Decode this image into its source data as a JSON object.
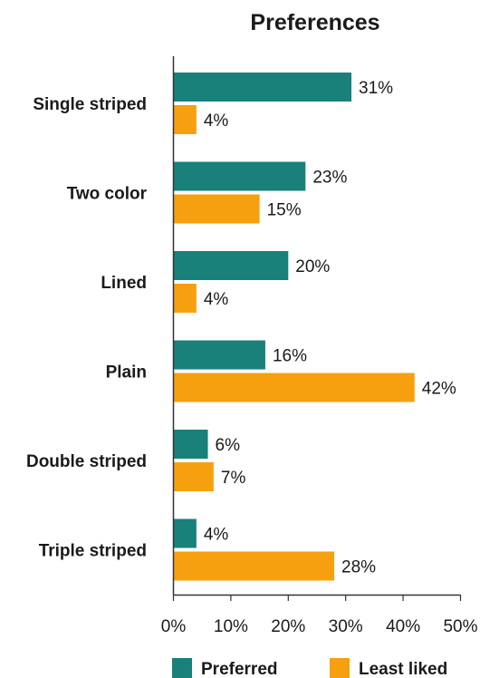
{
  "chart_data": {
    "type": "bar",
    "orientation": "horizontal",
    "title": "Preferences",
    "xlabel": "",
    "ylabel": "",
    "categories": [
      "Single striped",
      "Two color",
      "Lined",
      "Plain",
      "Double striped",
      "Triple striped"
    ],
    "series": [
      {
        "name": "Preferred",
        "color": "#19807a",
        "values": [
          31,
          23,
          20,
          16,
          6,
          4
        ]
      },
      {
        "name": "Least liked",
        "color": "#f7a00f",
        "values": [
          4,
          15,
          4,
          42,
          7,
          28
        ]
      }
    ],
    "xlim": [
      0,
      50
    ],
    "xticks": [
      0,
      10,
      20,
      30,
      40,
      50
    ],
    "tick_suffix": "%",
    "value_suffix": "%",
    "grid": false,
    "legend_position": "bottom"
  }
}
